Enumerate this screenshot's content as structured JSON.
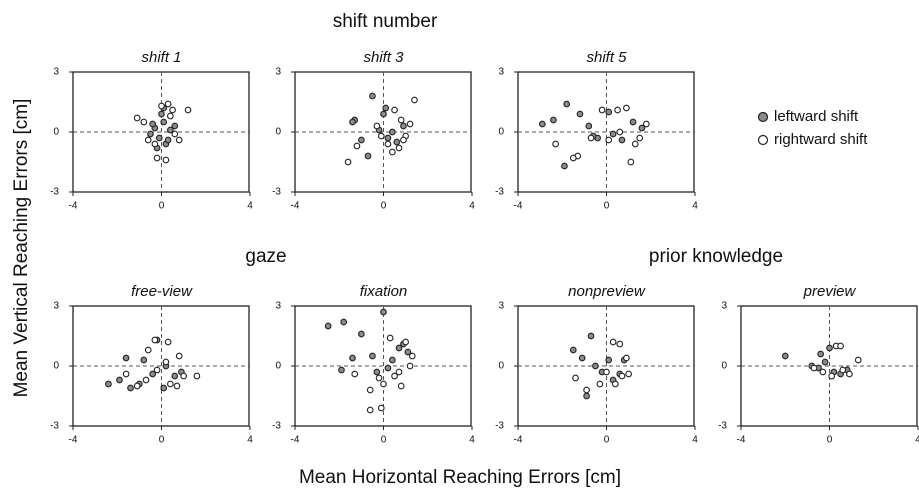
{
  "figure": {
    "y_label": "Mean Vertical Reaching Errors [cm]",
    "x_label": "Mean Horizontal Reaching Errors [cm]",
    "group_titles": [
      "shift number",
      "gaze",
      "prior knowledge"
    ]
  },
  "chart_data": [
    {
      "type": "scatter",
      "title": "shift 1",
      "xlim": [
        -4,
        4
      ],
      "ylim": [
        -3,
        3
      ],
      "xticks": [
        -4,
        0,
        4
      ],
      "yticks": [
        -3,
        0,
        3
      ],
      "series": [
        {
          "name": "leftward shift",
          "color": "#8c8c8c",
          "x": [
            -0.3,
            0.1,
            -0.1,
            0.2,
            0.4,
            -0.5,
            0.0,
            0.3,
            -0.2,
            0.6,
            -0.4,
            0.1
          ],
          "y": [
            0.2,
            0.5,
            -0.3,
            -0.6,
            0.1,
            -0.1,
            0.9,
            -0.4,
            -0.8,
            0.3,
            0.4,
            1.2
          ]
        },
        {
          "name": "rightward shift",
          "color": "#ffffff",
          "x": [
            -1.1,
            -0.8,
            -0.6,
            0.3,
            0.5,
            0.8,
            1.2,
            -0.2,
            0.2,
            0.0,
            0.6,
            -0.3,
            0.4
          ],
          "y": [
            0.7,
            0.5,
            -0.4,
            1.4,
            1.1,
            -0.4,
            1.1,
            -1.3,
            -1.4,
            1.3,
            -0.1,
            -0.6,
            0.8
          ]
        }
      ]
    },
    {
      "type": "scatter",
      "title": "shift 3",
      "xlim": [
        -4,
        4
      ],
      "ylim": [
        -3,
        3
      ],
      "xticks": [
        -4,
        0,
        4
      ],
      "yticks": [
        -3,
        0,
        3
      ],
      "series": [
        {
          "name": "leftward shift",
          "color": "#8c8c8c",
          "x": [
            -1.3,
            -1.0,
            -0.5,
            0.1,
            0.4,
            -0.2,
            0.6,
            0.9,
            -0.7,
            0.2,
            -1.4,
            0.0
          ],
          "y": [
            0.6,
            -0.4,
            1.8,
            1.2,
            0.0,
            0.1,
            -0.5,
            0.3,
            -1.2,
            -0.3,
            0.5,
            0.9
          ]
        },
        {
          "name": "rightward shift",
          "color": "#ffffff",
          "x": [
            -1.6,
            -1.2,
            -0.3,
            0.5,
            0.8,
            1.0,
            1.4,
            0.7,
            0.2,
            -0.1,
            0.4,
            1.2,
            0.9
          ],
          "y": [
            -1.5,
            -0.7,
            0.3,
            1.1,
            0.6,
            -0.2,
            1.6,
            -0.8,
            -0.6,
            -0.2,
            -1.0,
            0.4,
            -0.4
          ]
        }
      ]
    },
    {
      "type": "scatter",
      "title": "shift 5",
      "xlim": [
        -4,
        4
      ],
      "ylim": [
        -3,
        3
      ],
      "xticks": [
        -4,
        0,
        4
      ],
      "yticks": [
        -3,
        0,
        3
      ],
      "series": [
        {
          "name": "leftward shift",
          "color": "#8c8c8c",
          "x": [
            -2.9,
            -2.4,
            -1.8,
            -1.2,
            -0.8,
            -0.4,
            0.3,
            0.7,
            1.2,
            -1.9,
            -0.6,
            0.1,
            1.6
          ],
          "y": [
            0.4,
            0.6,
            1.4,
            0.9,
            0.3,
            -0.3,
            -0.1,
            -0.4,
            0.5,
            -1.7,
            -0.2,
            1.0,
            0.2
          ]
        },
        {
          "name": "rightward shift",
          "color": "#ffffff",
          "x": [
            -2.3,
            -1.3,
            -0.7,
            0.1,
            0.5,
            0.9,
            1.1,
            1.5,
            1.8,
            -1.5,
            0.6,
            1.3,
            -0.2
          ],
          "y": [
            -0.6,
            -1.2,
            -0.3,
            -0.4,
            1.1,
            1.2,
            -1.5,
            -0.3,
            0.4,
            -1.3,
            0.0,
            -0.6,
            1.1
          ]
        }
      ]
    },
    {
      "type": "scatter",
      "title": "free-view",
      "xlim": [
        -4,
        4
      ],
      "ylim": [
        -3,
        3
      ],
      "xticks": [
        -4,
        0,
        4
      ],
      "yticks": [
        -3,
        0,
        3
      ],
      "series": [
        {
          "name": "leftward shift",
          "color": "#8c8c8c",
          "x": [
            -2.4,
            -1.9,
            -1.4,
            -0.8,
            -0.4,
            0.2,
            0.6,
            -1.0,
            0.1,
            0.9,
            -0.2,
            -1.6
          ],
          "y": [
            -0.9,
            -0.7,
            -1.1,
            0.3,
            -0.4,
            0.0,
            -0.5,
            -0.9,
            -1.1,
            -0.3,
            1.3,
            0.4
          ]
        },
        {
          "name": "rightward shift",
          "color": "#ffffff",
          "x": [
            -1.6,
            -1.1,
            -0.6,
            -0.3,
            0.3,
            0.7,
            1.0,
            1.6,
            0.2,
            0.4,
            -0.2,
            0.8,
            -0.7
          ],
          "y": [
            -0.4,
            -1.0,
            0.8,
            1.3,
            1.2,
            -1.0,
            -0.5,
            -0.5,
            0.2,
            -0.9,
            -0.2,
            0.5,
            -0.7
          ]
        }
      ]
    },
    {
      "type": "scatter",
      "title": "fixation",
      "xlim": [
        -4,
        4
      ],
      "ylim": [
        -3,
        3
      ],
      "xticks": [
        -4,
        0,
        4
      ],
      "yticks": [
        -3,
        0,
        3
      ],
      "series": [
        {
          "name": "leftward shift",
          "color": "#8c8c8c",
          "x": [
            -2.5,
            -1.8,
            -1.4,
            -1.0,
            -0.5,
            0.0,
            0.4,
            0.9,
            -0.3,
            0.2,
            -1.9,
            0.7,
            1.1
          ],
          "y": [
            2.0,
            2.2,
            0.4,
            1.6,
            0.5,
            2.7,
            0.3,
            1.1,
            -0.3,
            -0.1,
            -0.2,
            0.9,
            0.7
          ]
        },
        {
          "name": "rightward shift",
          "color": "#ffffff",
          "x": [
            -1.3,
            -0.6,
            -0.2,
            0.3,
            0.7,
            1.0,
            1.3,
            0.5,
            -0.1,
            -0.6,
            0.0,
            0.8,
            1.2
          ],
          "y": [
            -0.4,
            -1.2,
            -0.6,
            1.4,
            -0.3,
            1.2,
            0.5,
            -0.5,
            -2.1,
            -2.2,
            -0.9,
            -1.0,
            0.0
          ]
        }
      ]
    },
    {
      "type": "scatter",
      "title": "nonpreview",
      "xlim": [
        -4,
        4
      ],
      "ylim": [
        -3,
        3
      ],
      "xticks": [
        -4,
        0,
        4
      ],
      "yticks": [
        -3,
        0,
        3
      ],
      "series": [
        {
          "name": "leftward shift",
          "color": "#8c8c8c",
          "x": [
            -1.5,
            -1.1,
            -0.7,
            -0.2,
            0.3,
            -0.5,
            0.1,
            0.6,
            -0.9,
            0.8
          ],
          "y": [
            0.8,
            0.4,
            1.5,
            -0.3,
            -0.7,
            0.0,
            0.3,
            -0.4,
            -1.5,
            0.3
          ]
        },
        {
          "name": "rightward shift",
          "color": "#ffffff",
          "x": [
            -1.4,
            -0.9,
            0.3,
            0.6,
            0.9,
            1.0,
            0.4,
            -0.3,
            0.0,
            0.7
          ],
          "y": [
            -0.6,
            -1.2,
            1.2,
            1.1,
            0.4,
            -0.4,
            -0.9,
            -0.9,
            -0.3,
            -0.5
          ]
        }
      ]
    },
    {
      "type": "scatter",
      "title": "preview",
      "xlim": [
        -4,
        4
      ],
      "ylim": [
        -3,
        3
      ],
      "xticks": [
        -4,
        0,
        4
      ],
      "yticks": [
        -3,
        0,
        3
      ],
      "series": [
        {
          "name": "leftward shift",
          "color": "#8c8c8c",
          "x": [
            -2.0,
            -0.8,
            -0.5,
            -0.2,
            0.2,
            0.5,
            0.8,
            0.0,
            -0.4
          ],
          "y": [
            0.5,
            0.0,
            -0.1,
            0.2,
            -0.3,
            -0.4,
            -0.2,
            0.9,
            0.6
          ]
        },
        {
          "name": "rightward shift",
          "color": "#ffffff",
          "x": [
            -0.7,
            -0.3,
            0.3,
            0.5,
            0.9,
            1.3,
            0.1,
            0.6
          ],
          "y": [
            -0.1,
            -0.3,
            1.0,
            1.0,
            -0.4,
            0.3,
            -0.5,
            -0.2
          ]
        }
      ]
    }
  ]
}
